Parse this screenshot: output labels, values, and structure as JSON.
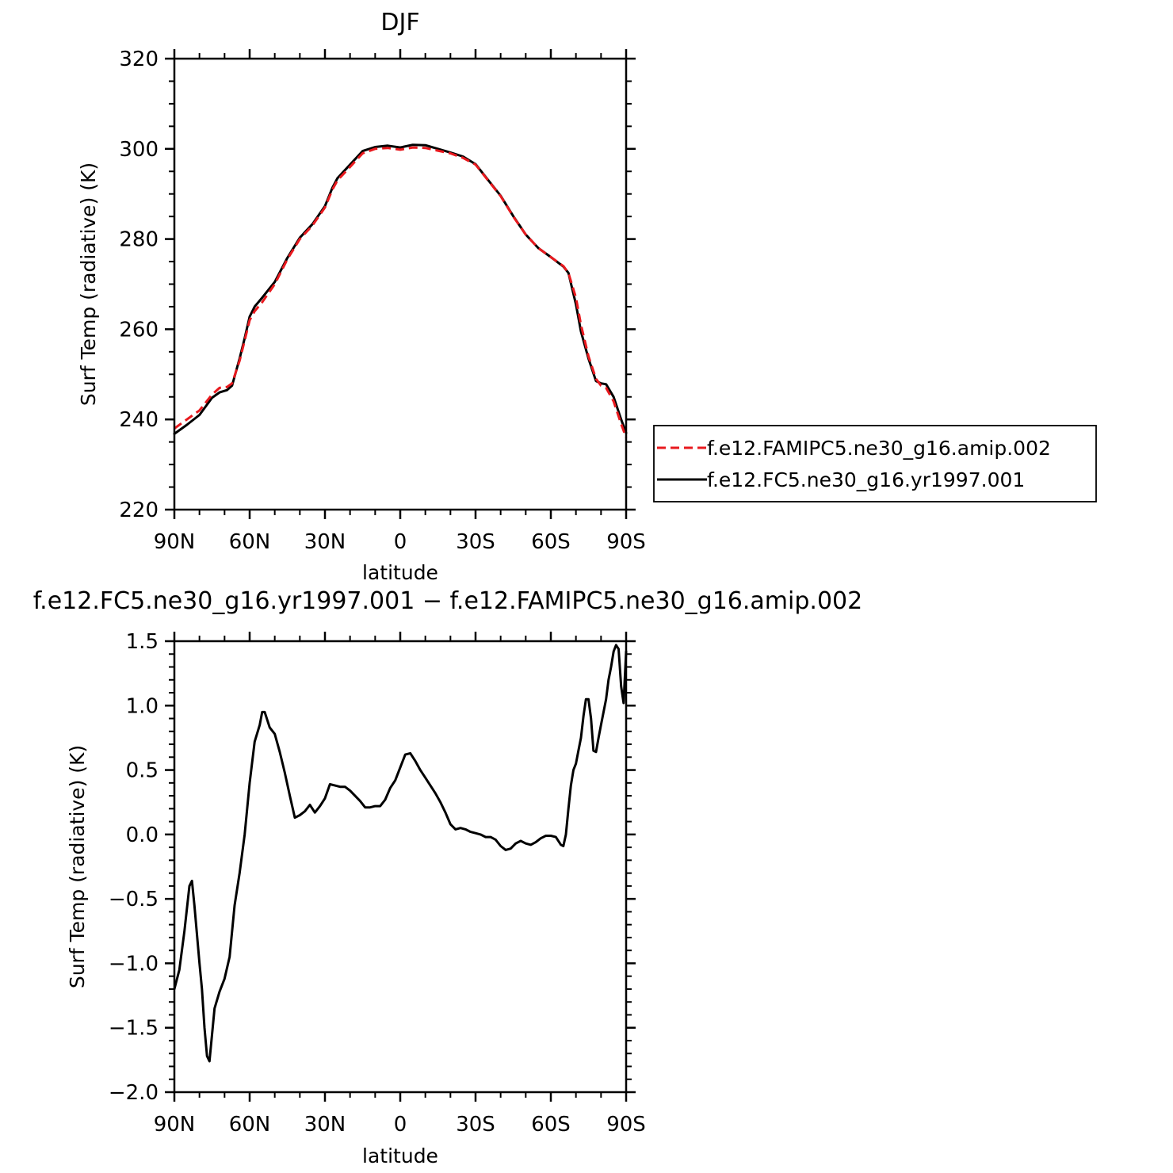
{
  "chart_data": [
    {
      "type": "line",
      "title": "DJF",
      "xlabel": "latitude",
      "ylabel": "Surf Temp (radiative) (K)",
      "xlim": [
        90,
        -90
      ],
      "ylim": [
        220,
        320
      ],
      "x_ticks": [
        {
          "value": 90,
          "label": "90N"
        },
        {
          "value": 60,
          "label": "60N"
        },
        {
          "value": 30,
          "label": "30N"
        },
        {
          "value": 0,
          "label": "0"
        },
        {
          "value": -30,
          "label": "30S"
        },
        {
          "value": -60,
          "label": "60S"
        },
        {
          "value": -90,
          "label": "90S"
        }
      ],
      "y_ticks": [
        {
          "value": 220,
          "label": "220"
        },
        {
          "value": 240,
          "label": "240"
        },
        {
          "value": 260,
          "label": "260"
        },
        {
          "value": 280,
          "label": "280"
        },
        {
          "value": 300,
          "label": "300"
        },
        {
          "value": 320,
          "label": "320"
        }
      ],
      "legend_position": "right",
      "series": [
        {
          "name": "f.e12.FAMIPC5.ne30_g16.amip.002",
          "color": "#e8191e",
          "dash": "dashed",
          "x": [
            90,
            85,
            80,
            75,
            72,
            69,
            67,
            64,
            62,
            60,
            58,
            55,
            50,
            45,
            40,
            35,
            30,
            27,
            25,
            20,
            15,
            10,
            5,
            0,
            -5,
            -10,
            -15,
            -20,
            -25,
            -30,
            -35,
            -40,
            -45,
            -50,
            -55,
            -60,
            -65,
            -67,
            -70,
            -72,
            -75,
            -78,
            -80,
            -82,
            -85,
            -88,
            -90
          ],
          "y": [
            238.0,
            240.0,
            242.0,
            245.5,
            247.0,
            247.2,
            248.0,
            253.0,
            257.5,
            262.0,
            264.0,
            266.0,
            270.0,
            275.5,
            280.0,
            283.0,
            287.0,
            291.0,
            293.0,
            296.0,
            299.0,
            300.0,
            300.2,
            299.8,
            300.3,
            300.2,
            299.6,
            299.0,
            298.0,
            296.5,
            293.0,
            289.5,
            285.0,
            281.0,
            278.0,
            276.0,
            274.0,
            272.5,
            267.0,
            261.0,
            254.0,
            249.0,
            247.5,
            247.0,
            244.0,
            239.0,
            236.0
          ]
        },
        {
          "name": "f.e12.FC5.ne30_g16.yr1997.001",
          "color": "#000000",
          "dash": "solid",
          "x": [
            90,
            85,
            80,
            75,
            72,
            69,
            67,
            64,
            62,
            60,
            58,
            55,
            50,
            45,
            40,
            35,
            30,
            27,
            25,
            20,
            15,
            10,
            5,
            0,
            -5,
            -10,
            -15,
            -20,
            -25,
            -30,
            -35,
            -40,
            -45,
            -50,
            -55,
            -60,
            -65,
            -67,
            -70,
            -72,
            -75,
            -78,
            -80,
            -82,
            -85,
            -88,
            -90
          ],
          "y": [
            236.8,
            238.8,
            241.0,
            244.8,
            246.0,
            246.5,
            247.5,
            253.5,
            258.0,
            262.8,
            265.0,
            267.0,
            270.5,
            275.8,
            280.3,
            283.3,
            287.3,
            291.4,
            293.5,
            296.5,
            299.5,
            300.4,
            300.7,
            300.3,
            300.9,
            300.8,
            300.0,
            299.2,
            298.3,
            296.6,
            293.1,
            289.6,
            285.1,
            281.0,
            278.0,
            276.0,
            273.9,
            272.5,
            265.5,
            259.5,
            253.5,
            248.5,
            248.0,
            247.8,
            245.0,
            240.0,
            237.0
          ]
        }
      ]
    },
    {
      "type": "line",
      "title": "f.e12.FC5.ne30_g16.yr1997.001 − f.e12.FAMIPC5.ne30_g16.amip.002",
      "xlabel": "latitude",
      "ylabel": "Surf Temp (radiative) (K)",
      "xlim": [
        90,
        -90
      ],
      "ylim": [
        -2.0,
        1.5
      ],
      "x_ticks": [
        {
          "value": 90,
          "label": "90N"
        },
        {
          "value": 60,
          "label": "60N"
        },
        {
          "value": 30,
          "label": "30N"
        },
        {
          "value": 0,
          "label": "0"
        },
        {
          "value": -30,
          "label": "30S"
        },
        {
          "value": -60,
          "label": "60S"
        },
        {
          "value": -90,
          "label": "90S"
        }
      ],
      "y_ticks": [
        {
          "value": -2.0,
          "label": "−2.0"
        },
        {
          "value": -1.5,
          "label": "−1.5"
        },
        {
          "value": -1.0,
          "label": "−1.0"
        },
        {
          "value": -0.5,
          "label": "−0.5"
        },
        {
          "value": 0.0,
          "label": "0.0"
        },
        {
          "value": 0.5,
          "label": "0.5"
        },
        {
          "value": 1.0,
          "label": "1.0"
        },
        {
          "value": 1.5,
          "label": "1.5"
        }
      ],
      "series": [
        {
          "name": "",
          "color": "#000000",
          "dash": "solid",
          "x": [
            90,
            88,
            86,
            84,
            83,
            82,
            80,
            79,
            78,
            77,
            76,
            74,
            72,
            70,
            68,
            66,
            64,
            62,
            60,
            58,
            56,
            55,
            54,
            52,
            50,
            48,
            46,
            44,
            42,
            40,
            38,
            36,
            34,
            32,
            30,
            28,
            26,
            24,
            22,
            20,
            18,
            16,
            14,
            12,
            10,
            8,
            6,
            4,
            2,
            0,
            -2,
            -4,
            -6,
            -8,
            -10,
            -12,
            -14,
            -16,
            -18,
            -20,
            -22,
            -24,
            -26,
            -28,
            -30,
            -32,
            -34,
            -36,
            -38,
            -40,
            -42,
            -44,
            -46,
            -48,
            -50,
            -52,
            -54,
            -56,
            -58,
            -60,
            -62,
            -64,
            -65,
            -66,
            -67,
            -68,
            -69,
            -70,
            -71,
            -72,
            -73,
            -74,
            -75,
            -76,
            -77,
            -78,
            -79,
            -80,
            -81,
            -82,
            -83,
            -84,
            -85,
            -86,
            -87,
            -88,
            -89,
            -90
          ],
          "y": [
            -1.2,
            -1.05,
            -0.75,
            -0.4,
            -0.36,
            -0.55,
            -1.0,
            -1.2,
            -1.5,
            -1.72,
            -1.76,
            -1.35,
            -1.22,
            -1.12,
            -0.95,
            -0.55,
            -0.3,
            0.0,
            0.4,
            0.72,
            0.85,
            0.95,
            0.95,
            0.83,
            0.78,
            0.64,
            0.48,
            0.3,
            0.13,
            0.15,
            0.18,
            0.23,
            0.17,
            0.22,
            0.28,
            0.39,
            0.38,
            0.37,
            0.37,
            0.34,
            0.3,
            0.26,
            0.21,
            0.21,
            0.22,
            0.22,
            0.27,
            0.36,
            0.42,
            0.52,
            0.62,
            0.63,
            0.57,
            0.5,
            0.44,
            0.38,
            0.32,
            0.25,
            0.17,
            0.08,
            0.04,
            0.05,
            0.04,
            0.02,
            0.01,
            0.0,
            -0.02,
            -0.02,
            -0.04,
            -0.09,
            -0.12,
            -0.11,
            -0.07,
            -0.05,
            -0.07,
            -0.08,
            -0.06,
            -0.03,
            -0.01,
            -0.01,
            -0.02,
            -0.08,
            -0.09,
            0.0,
            0.2,
            0.38,
            0.5,
            0.55,
            0.65,
            0.75,
            0.92,
            1.05,
            1.05,
            0.9,
            0.65,
            0.64,
            0.75,
            0.85,
            0.95,
            1.05,
            1.2,
            1.3,
            1.42,
            1.47,
            1.44,
            1.15,
            1.02,
            1.42
          ]
        }
      ]
    }
  ]
}
